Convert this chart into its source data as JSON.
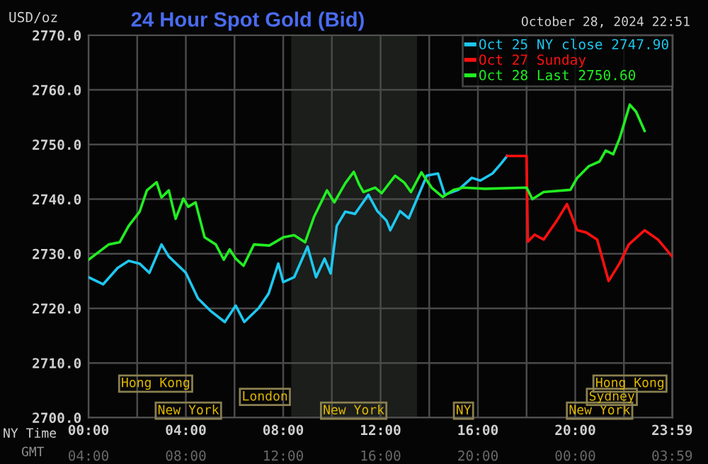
{
  "chart_data": {
    "type": "line",
    "title": "24 Hour Spot Gold (Bid)",
    "ylabel": "USD/oz",
    "annotations": [
      "October 28, 2024 22:51",
      "NY Time",
      "GMT",
      "04:00",
      "08:00",
      "12:00",
      "16:00",
      "20:00",
      "00:00",
      "03:59",
      "New York",
      "New York",
      "NY",
      "New York",
      "London",
      "Sydney",
      "Hong Kong",
      "Hong Kong"
    ],
    "xlim": [
      0,
      24
    ],
    "ylim": [
      2700,
      2770
    ],
    "xticks": [
      {
        "value": 0,
        "label": "00:00"
      },
      {
        "value": 2,
        "label": null
      },
      {
        "value": 4,
        "label": "04:00"
      },
      {
        "value": 6,
        "label": null
      },
      {
        "value": 8,
        "label": "08:00"
      },
      {
        "value": 10,
        "label": null
      },
      {
        "value": 12,
        "label": "12:00"
      },
      {
        "value": 14,
        "label": null
      },
      {
        "value": 16,
        "label": "16:00"
      },
      {
        "value": 18,
        "label": null
      },
      {
        "value": 20,
        "label": "20:00"
      },
      {
        "value": 22,
        "label": null
      },
      {
        "value": 23.98,
        "label": "23:59"
      }
    ],
    "yticks": [
      {
        "value": 2700,
        "label": "2700.0"
      },
      {
        "value": 2710,
        "label": "2710.0"
      },
      {
        "value": 2720,
        "label": "2720.0"
      },
      {
        "value": 2730,
        "label": "2730.0"
      },
      {
        "value": 2740,
        "label": "2740.0"
      },
      {
        "value": 2750,
        "label": "2750.0"
      },
      {
        "value": 2760,
        "label": "2760.0"
      },
      {
        "value": 2770,
        "label": "2770.0"
      }
    ],
    "grid": true,
    "legend": "top right",
    "marker": "none",
    "line_style": "solid",
    "bands": [
      {
        "axis": "x",
        "from": 8.33,
        "to": 13.5,
        "color": "#1b1e1b"
      }
    ],
    "series": [
      {
        "name": "Oct 25 NY close 2747.90",
        "color": "#1ec8f0",
        "x": [
          0,
          0.6,
          1.2,
          1.65,
          2.1,
          2.5,
          3.0,
          3.3,
          4.0,
          4.5,
          5.0,
          5.6,
          6.05,
          6.4,
          7.0,
          7.4,
          7.8,
          8.0,
          8.45,
          9.0,
          9.35,
          9.7,
          9.95,
          10.2,
          10.55,
          10.95,
          11.5,
          11.87,
          12.24,
          12.4,
          12.8,
          13.16,
          13.53,
          13.9,
          14.36,
          14.64,
          15.2,
          15.75,
          16.1,
          16.6,
          16.95,
          17.2
        ],
        "values": [
          2725.7,
          2724.4,
          2727.4,
          2728.7,
          2728.2,
          2726.5,
          2731.7,
          2729.5,
          2726.5,
          2721.8,
          2719.6,
          2717.5,
          2720.5,
          2717.5,
          2720.1,
          2722.7,
          2728.2,
          2724.8,
          2725.7,
          2731.3,
          2725.7,
          2729.1,
          2726.4,
          2735.1,
          2737.7,
          2737.3,
          2740.8,
          2737.8,
          2736.1,
          2734.3,
          2737.8,
          2736.5,
          2740.4,
          2744.3,
          2744.7,
          2740.8,
          2741.7,
          2743.9,
          2743.4,
          2744.7,
          2746.5,
          2747.9
        ]
      },
      {
        "name": "Oct 27 Sunday",
        "color": "#ff1010",
        "x": [
          17.2,
          18.0,
          18.05,
          18.33,
          18.7,
          19.25,
          19.66,
          20.08,
          20.45,
          20.9,
          21.37,
          21.83,
          22.2,
          22.85,
          23.4,
          23.96
        ],
        "values": [
          2747.9,
          2747.9,
          2732.2,
          2733.5,
          2732.6,
          2736.1,
          2739.1,
          2734.3,
          2733.9,
          2732.6,
          2725.0,
          2728.3,
          2731.7,
          2734.3,
          2732.6,
          2729.6
        ]
      },
      {
        "name": "Oct 28 Last 2750.60",
        "color": "#22ee22",
        "x": [
          0,
          0.83,
          1.28,
          1.65,
          2.1,
          2.4,
          2.8,
          3.0,
          3.3,
          3.58,
          3.9,
          4.1,
          4.4,
          4.77,
          5.23,
          5.56,
          5.8,
          6.05,
          6.37,
          6.8,
          7.43,
          8.0,
          8.45,
          8.9,
          9.27,
          9.8,
          10.1,
          10.55,
          10.9,
          11.13,
          11.3,
          11.78,
          12.05,
          12.6,
          12.98,
          13.25,
          13.68,
          14.1,
          14.55,
          15.0,
          15.4,
          16.3,
          18.0,
          18.24,
          18.7,
          19.8,
          20.08,
          20.55,
          21.0,
          21.25,
          21.56,
          21.83,
          22.24,
          22.5,
          22.85
        ],
        "values": [
          2728.9,
          2731.7,
          2732.1,
          2735.1,
          2737.7,
          2741.6,
          2743.1,
          2740.3,
          2741.6,
          2736.4,
          2740.1,
          2738.6,
          2739.4,
          2733.0,
          2731.7,
          2728.9,
          2730.8,
          2729.1,
          2727.8,
          2731.7,
          2731.5,
          2733.0,
          2733.4,
          2732.1,
          2736.8,
          2741.6,
          2739.4,
          2742.9,
          2745.0,
          2742.6,
          2741.3,
          2742.1,
          2741.1,
          2744.3,
          2743.0,
          2741.3,
          2744.9,
          2742.1,
          2740.4,
          2741.7,
          2742.1,
          2741.9,
          2742.1,
          2740.0,
          2741.3,
          2741.7,
          2743.9,
          2746.0,
          2746.9,
          2748.9,
          2748.2,
          2751.2,
          2757.3,
          2756.0,
          2752.5
        ]
      }
    ]
  }
}
